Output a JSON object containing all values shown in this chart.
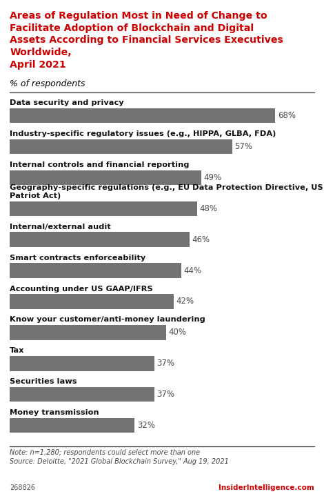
{
  "title_main": "Areas of Regulation Most in Need of Change to\nFacilitate Adoption of Blockchain and Digital\nAssets According to Financial Services Executives\nWorldwide,\nApril 2021",
  "subtitle": "% of respondents",
  "categories": [
    "Data security and privacy",
    "Industry-specific regulatory issues (e.g., HIPPA, GLBA, FDA)",
    "Internal controls and financial reporting",
    "Geography-specific regulations (e.g., EU Data Protection Directive, US\nPatriot Act)",
    "Internal/external audit",
    "Smart contracts enforceability",
    "Accounting under US GAAP/IFRS",
    "Know your customer/anti-money laundering",
    "Tax",
    "Securities laws",
    "Money transmission"
  ],
  "values": [
    68,
    57,
    49,
    48,
    46,
    44,
    42,
    40,
    37,
    37,
    32
  ],
  "bar_color": "#737373",
  "value_color": "#4a4a4a",
  "title_color": "#cc0000",
  "bg_color": "#ffffff",
  "note": "Note: n=1,280; respondents could select more than one\nSource: Deloitte, \"2021 Global Blockchain Survey,\" Aug 19, 2021",
  "watermark": "InsiderIntelligence.com",
  "chart_id": "268826",
  "xlim": [
    0,
    78
  ]
}
